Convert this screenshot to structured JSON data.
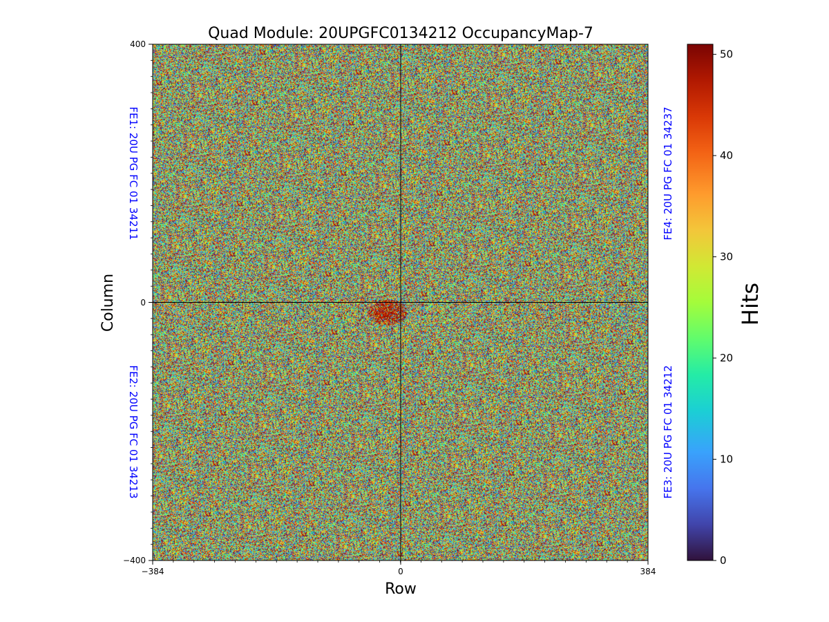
{
  "chart_data": {
    "type": "heatmap",
    "title": "Quad Module: 20UPGFC0134212 OccupancyMap-7",
    "xlabel": "Row",
    "ylabel": "Column",
    "xlim": [
      -384,
      384
    ],
    "ylim": [
      -400,
      400
    ],
    "x_ticks": [
      "−384",
      "0",
      "384"
    ],
    "y_ticks": [
      "400",
      "0",
      "−400"
    ],
    "colorbar": {
      "label": "Hits",
      "range": [
        0,
        51
      ],
      "ticks": [
        "0",
        "10",
        "20",
        "30",
        "40",
        "50"
      ],
      "colormap": "turbo"
    },
    "frontends": [
      {
        "id": "FE1",
        "label": "FE1: 20U PG FC 01 34211",
        "quadrant": "top-left"
      },
      {
        "id": "FE4",
        "label": "FE4: 20U PG FC 01 34237",
        "quadrant": "top-right"
      },
      {
        "id": "FE2",
        "label": "FE2: 20U PG FC 01 34213",
        "quadrant": "bottom-left"
      },
      {
        "id": "FE3",
        "label": "FE3: 20U PG FC 01 34212",
        "quadrant": "bottom-right"
      }
    ],
    "hotspot": {
      "description_value_hits": 51,
      "center": [
        -20,
        -15
      ],
      "radius": [
        30,
        20
      ]
    },
    "distribution": "uniform random noise across all pixels, values 0-51",
    "grid": false
  }
}
